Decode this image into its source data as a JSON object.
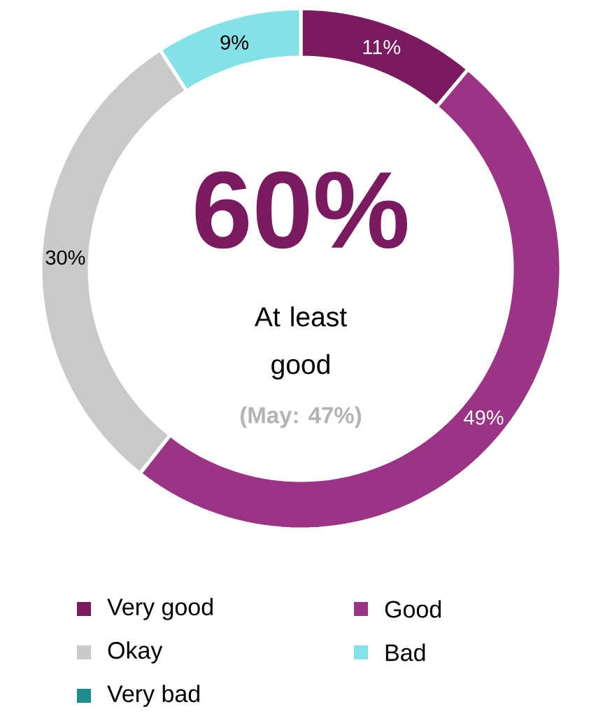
{
  "chart_data": {
    "type": "donut",
    "categories": [
      "Very good",
      "Good",
      "Okay",
      "Bad",
      "Very bad"
    ],
    "values": [
      11,
      49,
      30,
      9,
      0
    ],
    "value_labels": [
      "11%",
      "49%",
      "30%",
      "9%",
      null
    ],
    "colors": [
      "#7a1b60",
      "#9c3485",
      "#c9c9c9",
      "#84e1e6",
      "#1e8c8c"
    ],
    "annotations": [
      "60%",
      "At least good",
      "(May: 47%)"
    ],
    "legend": "bottom"
  }
}
